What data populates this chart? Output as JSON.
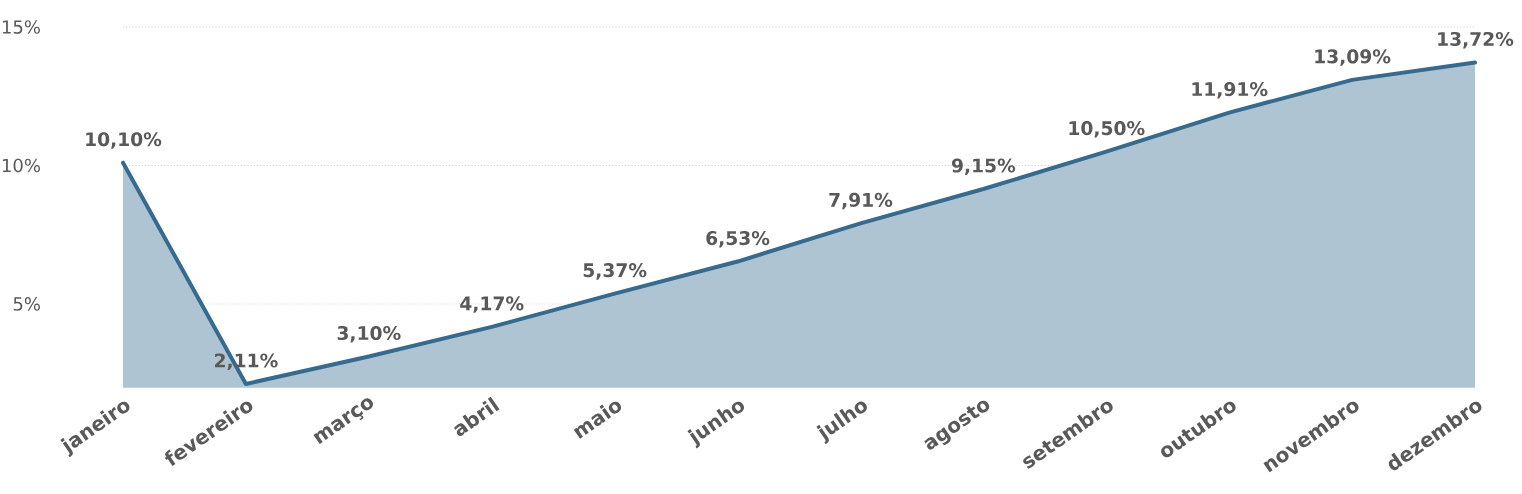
{
  "chart_data": {
    "type": "area",
    "categories": [
      "janeiro",
      "fevereiro",
      "março",
      "abril",
      "maio",
      "junho",
      "julho",
      "agosto",
      "setembro",
      "outubro",
      "novembro",
      "dezembro"
    ],
    "series": [
      {
        "color": "#366b8f",
        "values": [
          10.1,
          2.11,
          3.1,
          4.17,
          5.37,
          6.53,
          7.91,
          9.15,
          10.5,
          11.91,
          13.09,
          13.72
        ],
        "value_labels": [
          "10,10%",
          "2,11%",
          "3,10%",
          "4,17%",
          "5,37%",
          "6,53%",
          "7,91%",
          "9,15%",
          "10,50%",
          "11,91%",
          "13,09%",
          "13,72%"
        ]
      }
    ],
    "ylim": [
      2,
      15
    ],
    "yticks": [
      {
        "value": 5,
        "label": "5%"
      },
      {
        "value": 10,
        "label": "10%"
      },
      {
        "value": 15,
        "label": "15%"
      }
    ],
    "grid": "y",
    "marker": "none",
    "line_style": "solid"
  }
}
